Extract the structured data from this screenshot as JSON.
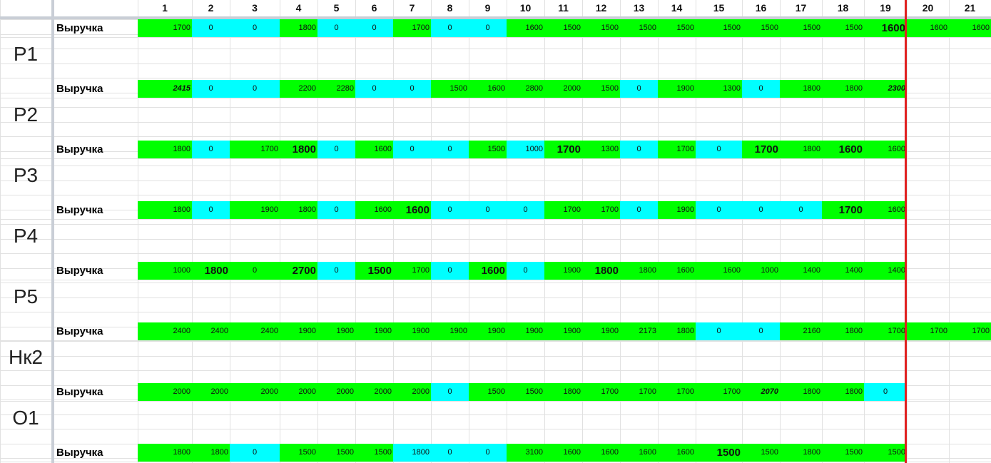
{
  "columns": [
    "1",
    "2",
    "3",
    "4",
    "5",
    "6",
    "7",
    "8",
    "9",
    "10",
    "11",
    "12",
    "13",
    "14",
    "15",
    "16",
    "17",
    "18",
    "19",
    "20",
    "21"
  ],
  "groups": [
    {
      "label": "P1",
      "row_label": "Выручка",
      "cells": [
        [
          "1700",
          "g",
          "r"
        ],
        [
          "0",
          "c",
          ""
        ],
        [
          "0",
          "c",
          ""
        ],
        [
          "1800",
          "g",
          "r"
        ],
        [
          "0",
          "c",
          ""
        ],
        [
          "0",
          "c",
          ""
        ],
        [
          "1700",
          "g",
          "r"
        ],
        [
          "0",
          "c",
          ""
        ],
        [
          "0",
          "c",
          ""
        ],
        [
          "1600",
          "g",
          "r"
        ],
        [
          "1500",
          "g",
          "r"
        ],
        [
          "1500",
          "g",
          "r"
        ],
        [
          "1500",
          "g",
          "r"
        ],
        [
          "1500",
          "g",
          "r"
        ],
        [
          "1500",
          "g",
          "r"
        ],
        [
          "1500",
          "g",
          "r"
        ],
        [
          "1500",
          "g",
          "r"
        ],
        [
          "1500",
          "g",
          "r"
        ],
        [
          "1600",
          "g",
          "rb"
        ],
        [
          "1600",
          "g",
          "r"
        ],
        [
          "1600",
          "g",
          "r"
        ]
      ]
    },
    {
      "label": "P2",
      "row_label": "Выручка",
      "cells": [
        [
          "2415",
          "g",
          "ri"
        ],
        [
          "0",
          "c",
          ""
        ],
        [
          "0",
          "c",
          ""
        ],
        [
          "2200",
          "g",
          "r"
        ],
        [
          "2280",
          "g",
          "r"
        ],
        [
          "0",
          "c",
          ""
        ],
        [
          "0",
          "c",
          ""
        ],
        [
          "1500",
          "g",
          "r"
        ],
        [
          "1600",
          "g",
          "r"
        ],
        [
          "2800",
          "g",
          "r"
        ],
        [
          "2000",
          "g",
          "r"
        ],
        [
          "1500",
          "g",
          "r"
        ],
        [
          "0",
          "c",
          ""
        ],
        [
          "1900",
          "g",
          "r"
        ],
        [
          "1300",
          "g",
          "r"
        ],
        [
          "0",
          "c",
          ""
        ],
        [
          "1800",
          "g",
          "r"
        ],
        [
          "1800",
          "g",
          "r"
        ],
        [
          "2300",
          "g",
          "ri"
        ],
        [
          "",
          ""
        ],
        [
          "",
          ""
        ]
      ]
    },
    {
      "label": "P3",
      "row_label": "Выручка",
      "cells": [
        [
          "1800",
          "g",
          "r"
        ],
        [
          "0",
          "c",
          ""
        ],
        [
          "1700",
          "g",
          "r"
        ],
        [
          "1800",
          "g",
          "rb"
        ],
        [
          "0",
          "c",
          ""
        ],
        [
          "1600",
          "g",
          "r"
        ],
        [
          "0",
          "c",
          ""
        ],
        [
          "0",
          "c",
          ""
        ],
        [
          "1500",
          "g",
          "r"
        ],
        [
          "1000",
          "c",
          "r"
        ],
        [
          "1700",
          "g",
          "rb"
        ],
        [
          "1300",
          "g",
          "r"
        ],
        [
          "0",
          "c",
          ""
        ],
        [
          "1700",
          "g",
          "r"
        ],
        [
          "0",
          "c",
          ""
        ],
        [
          "1700",
          "g",
          "rb"
        ],
        [
          "1800",
          "g",
          "r"
        ],
        [
          "1600",
          "g",
          "rb"
        ],
        [
          "1600",
          "g",
          "r"
        ],
        [
          "",
          ""
        ],
        [
          "",
          ""
        ]
      ]
    },
    {
      "label": "P4",
      "row_label": "Выручка",
      "cells": [
        [
          "1800",
          "g",
          "r"
        ],
        [
          "0",
          "c",
          ""
        ],
        [
          "1900",
          "g",
          "r"
        ],
        [
          "1800",
          "g",
          "r"
        ],
        [
          "0",
          "c",
          ""
        ],
        [
          "1600",
          "g",
          "r"
        ],
        [
          "1600",
          "g",
          "rb"
        ],
        [
          "0",
          "c",
          ""
        ],
        [
          "0",
          "c",
          ""
        ],
        [
          "0",
          "c",
          ""
        ],
        [
          "1700",
          "g",
          "r"
        ],
        [
          "1700",
          "g",
          "r"
        ],
        [
          "0",
          "c",
          ""
        ],
        [
          "1900",
          "g",
          "r"
        ],
        [
          "0",
          "c",
          ""
        ],
        [
          "0",
          "c",
          ""
        ],
        [
          "0",
          "c",
          ""
        ],
        [
          "1700",
          "g",
          "rb"
        ],
        [
          "1600",
          "g",
          "r"
        ],
        [
          "",
          ""
        ],
        [
          "",
          ""
        ]
      ]
    },
    {
      "label": "P5",
      "row_label": "Выручка",
      "cells": [
        [
          "1000",
          "g",
          "r"
        ],
        [
          "1800",
          "g",
          "rb"
        ],
        [
          "0",
          "g",
          ""
        ],
        [
          "2700",
          "g",
          "rb"
        ],
        [
          "0",
          "c",
          ""
        ],
        [
          "1500",
          "g",
          "rb"
        ],
        [
          "1700",
          "g",
          "r"
        ],
        [
          "0",
          "c",
          ""
        ],
        [
          "1600",
          "g",
          "rb"
        ],
        [
          "0",
          "c",
          ""
        ],
        [
          "1900",
          "g",
          "r"
        ],
        [
          "1800",
          "g",
          "rb"
        ],
        [
          "1800",
          "g",
          "r"
        ],
        [
          "1600",
          "g",
          "r"
        ],
        [
          "1600",
          "g",
          "r"
        ],
        [
          "1000",
          "g",
          "r"
        ],
        [
          "1400",
          "g",
          "r"
        ],
        [
          "1400",
          "g",
          "r"
        ],
        [
          "1400",
          "g",
          "r"
        ],
        [
          "",
          ""
        ],
        [
          "",
          ""
        ]
      ]
    },
    {
      "label": "Нк2",
      "row_label": "Выручка",
      "cells": [
        [
          "2400",
          "g",
          "r"
        ],
        [
          "2400",
          "g",
          "r"
        ],
        [
          "2400",
          "g",
          "r"
        ],
        [
          "1900",
          "g",
          "r"
        ],
        [
          "1900",
          "g",
          "r"
        ],
        [
          "1900",
          "g",
          "r"
        ],
        [
          "1900",
          "g",
          "r"
        ],
        [
          "1900",
          "g",
          "r"
        ],
        [
          "1900",
          "g",
          "r"
        ],
        [
          "1900",
          "g",
          "r"
        ],
        [
          "1900",
          "g",
          "r"
        ],
        [
          "1900",
          "g",
          "r"
        ],
        [
          "2173",
          "g",
          "r"
        ],
        [
          "1800",
          "g",
          "r"
        ],
        [
          "0",
          "c",
          ""
        ],
        [
          "0",
          "c",
          ""
        ],
        [
          "2160",
          "g",
          "r"
        ],
        [
          "1800",
          "g",
          "r"
        ],
        [
          "1700",
          "g",
          "r"
        ],
        [
          "1700",
          "g",
          "r"
        ],
        [
          "1700",
          "g",
          "r"
        ]
      ]
    },
    {
      "label": "O1",
      "row_label": "Выручка",
      "cells": [
        [
          "2000",
          "g",
          "r"
        ],
        [
          "2000",
          "g",
          "r"
        ],
        [
          "2000",
          "g",
          "r"
        ],
        [
          "2000",
          "g",
          "r"
        ],
        [
          "2000",
          "g",
          "r"
        ],
        [
          "2000",
          "g",
          "r"
        ],
        [
          "2000",
          "g",
          "r"
        ],
        [
          "0",
          "c",
          ""
        ],
        [
          "1500",
          "g",
          "r"
        ],
        [
          "1500",
          "g",
          "r"
        ],
        [
          "1800",
          "g",
          "r"
        ],
        [
          "1700",
          "g",
          "r"
        ],
        [
          "1700",
          "g",
          "r"
        ],
        [
          "1700",
          "g",
          "r"
        ],
        [
          "1700",
          "g",
          "r"
        ],
        [
          "2070",
          "g",
          "ri"
        ],
        [
          "1800",
          "g",
          "r"
        ],
        [
          "1800",
          "g",
          "r"
        ],
        [
          "0",
          "c",
          ""
        ],
        [
          "",
          ""
        ],
        [
          "",
          ""
        ]
      ]
    },
    {
      "label": "",
      "row_label": "Выручка",
      "cells": [
        [
          "1800",
          "g",
          "r"
        ],
        [
          "1800",
          "g",
          "r"
        ],
        [
          "0",
          "c",
          ""
        ],
        [
          "1500",
          "g",
          "r"
        ],
        [
          "1500",
          "g",
          "r"
        ],
        [
          "1500",
          "g",
          "r"
        ],
        [
          "1800",
          "c",
          "r"
        ],
        [
          "0",
          "c",
          ""
        ],
        [
          "0",
          "c",
          ""
        ],
        [
          "3100",
          "g",
          "r"
        ],
        [
          "1600",
          "g",
          "r"
        ],
        [
          "1600",
          "g",
          "r"
        ],
        [
          "1600",
          "g",
          "r"
        ],
        [
          "1600",
          "g",
          "r"
        ],
        [
          "1500",
          "g",
          "rb"
        ],
        [
          "1500",
          "g",
          "r"
        ],
        [
          "1800",
          "g",
          "r"
        ],
        [
          "1500",
          "g",
          "r"
        ],
        [
          "1500",
          "g",
          "r"
        ],
        [
          "",
          ""
        ],
        [
          "",
          ""
        ]
      ]
    }
  ]
}
